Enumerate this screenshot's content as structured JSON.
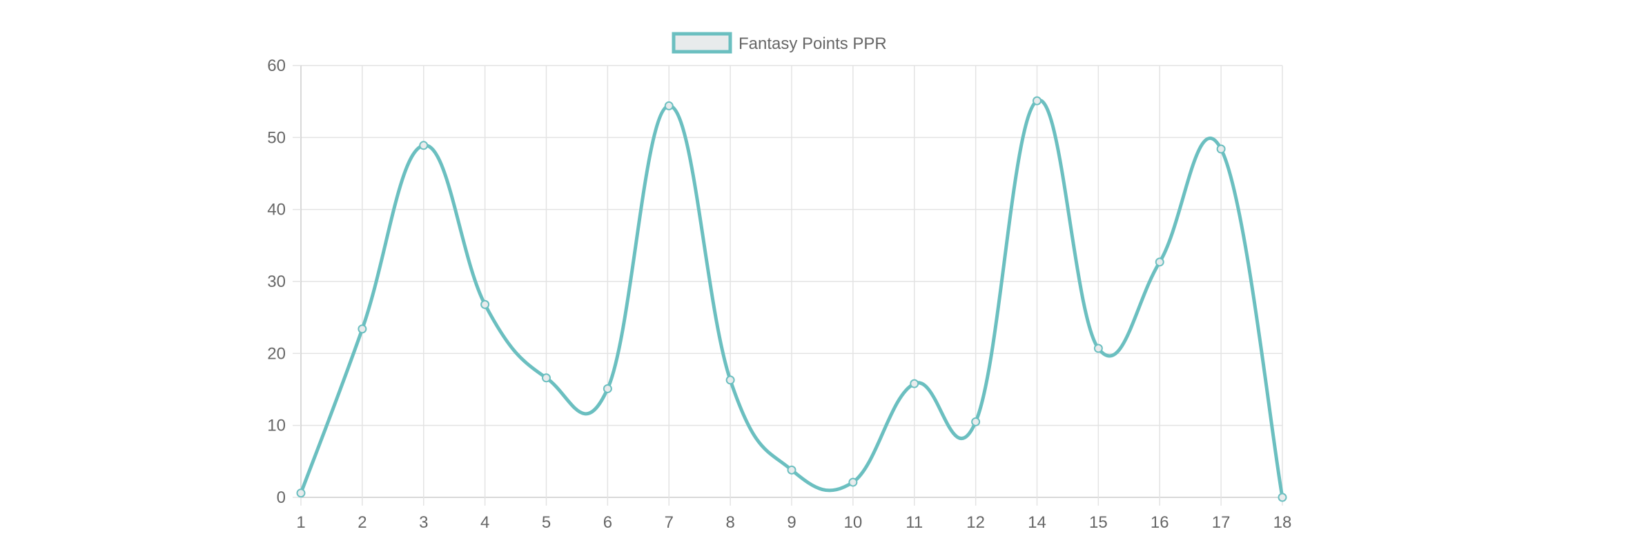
{
  "chart_data": {
    "type": "line",
    "title": "",
    "xlabel": "",
    "ylabel": "",
    "categories": [
      "1",
      "2",
      "3",
      "4",
      "5",
      "6",
      "7",
      "8",
      "9",
      "10",
      "11",
      "12",
      "14",
      "15",
      "16",
      "17",
      "18"
    ],
    "series": [
      {
        "name": "Fantasy Points PPR",
        "values": [
          0.6,
          23.4,
          48.9,
          26.8,
          16.6,
          15.1,
          54.4,
          16.3,
          3.8,
          2.1,
          15.8,
          10.5,
          55.1,
          20.7,
          32.7,
          48.4,
          0
        ]
      }
    ],
    "ylim": [
      0,
      60
    ],
    "yticks": [
      "0",
      "10",
      "20",
      "30",
      "40",
      "50",
      "60"
    ],
    "grid": true,
    "legend": "top-center",
    "colors": {
      "line": "#6bbfc0",
      "legend_fill": "#e8ebec",
      "grid": "#e3e3e3",
      "axis": "#cccccc",
      "text": "#666666"
    }
  }
}
